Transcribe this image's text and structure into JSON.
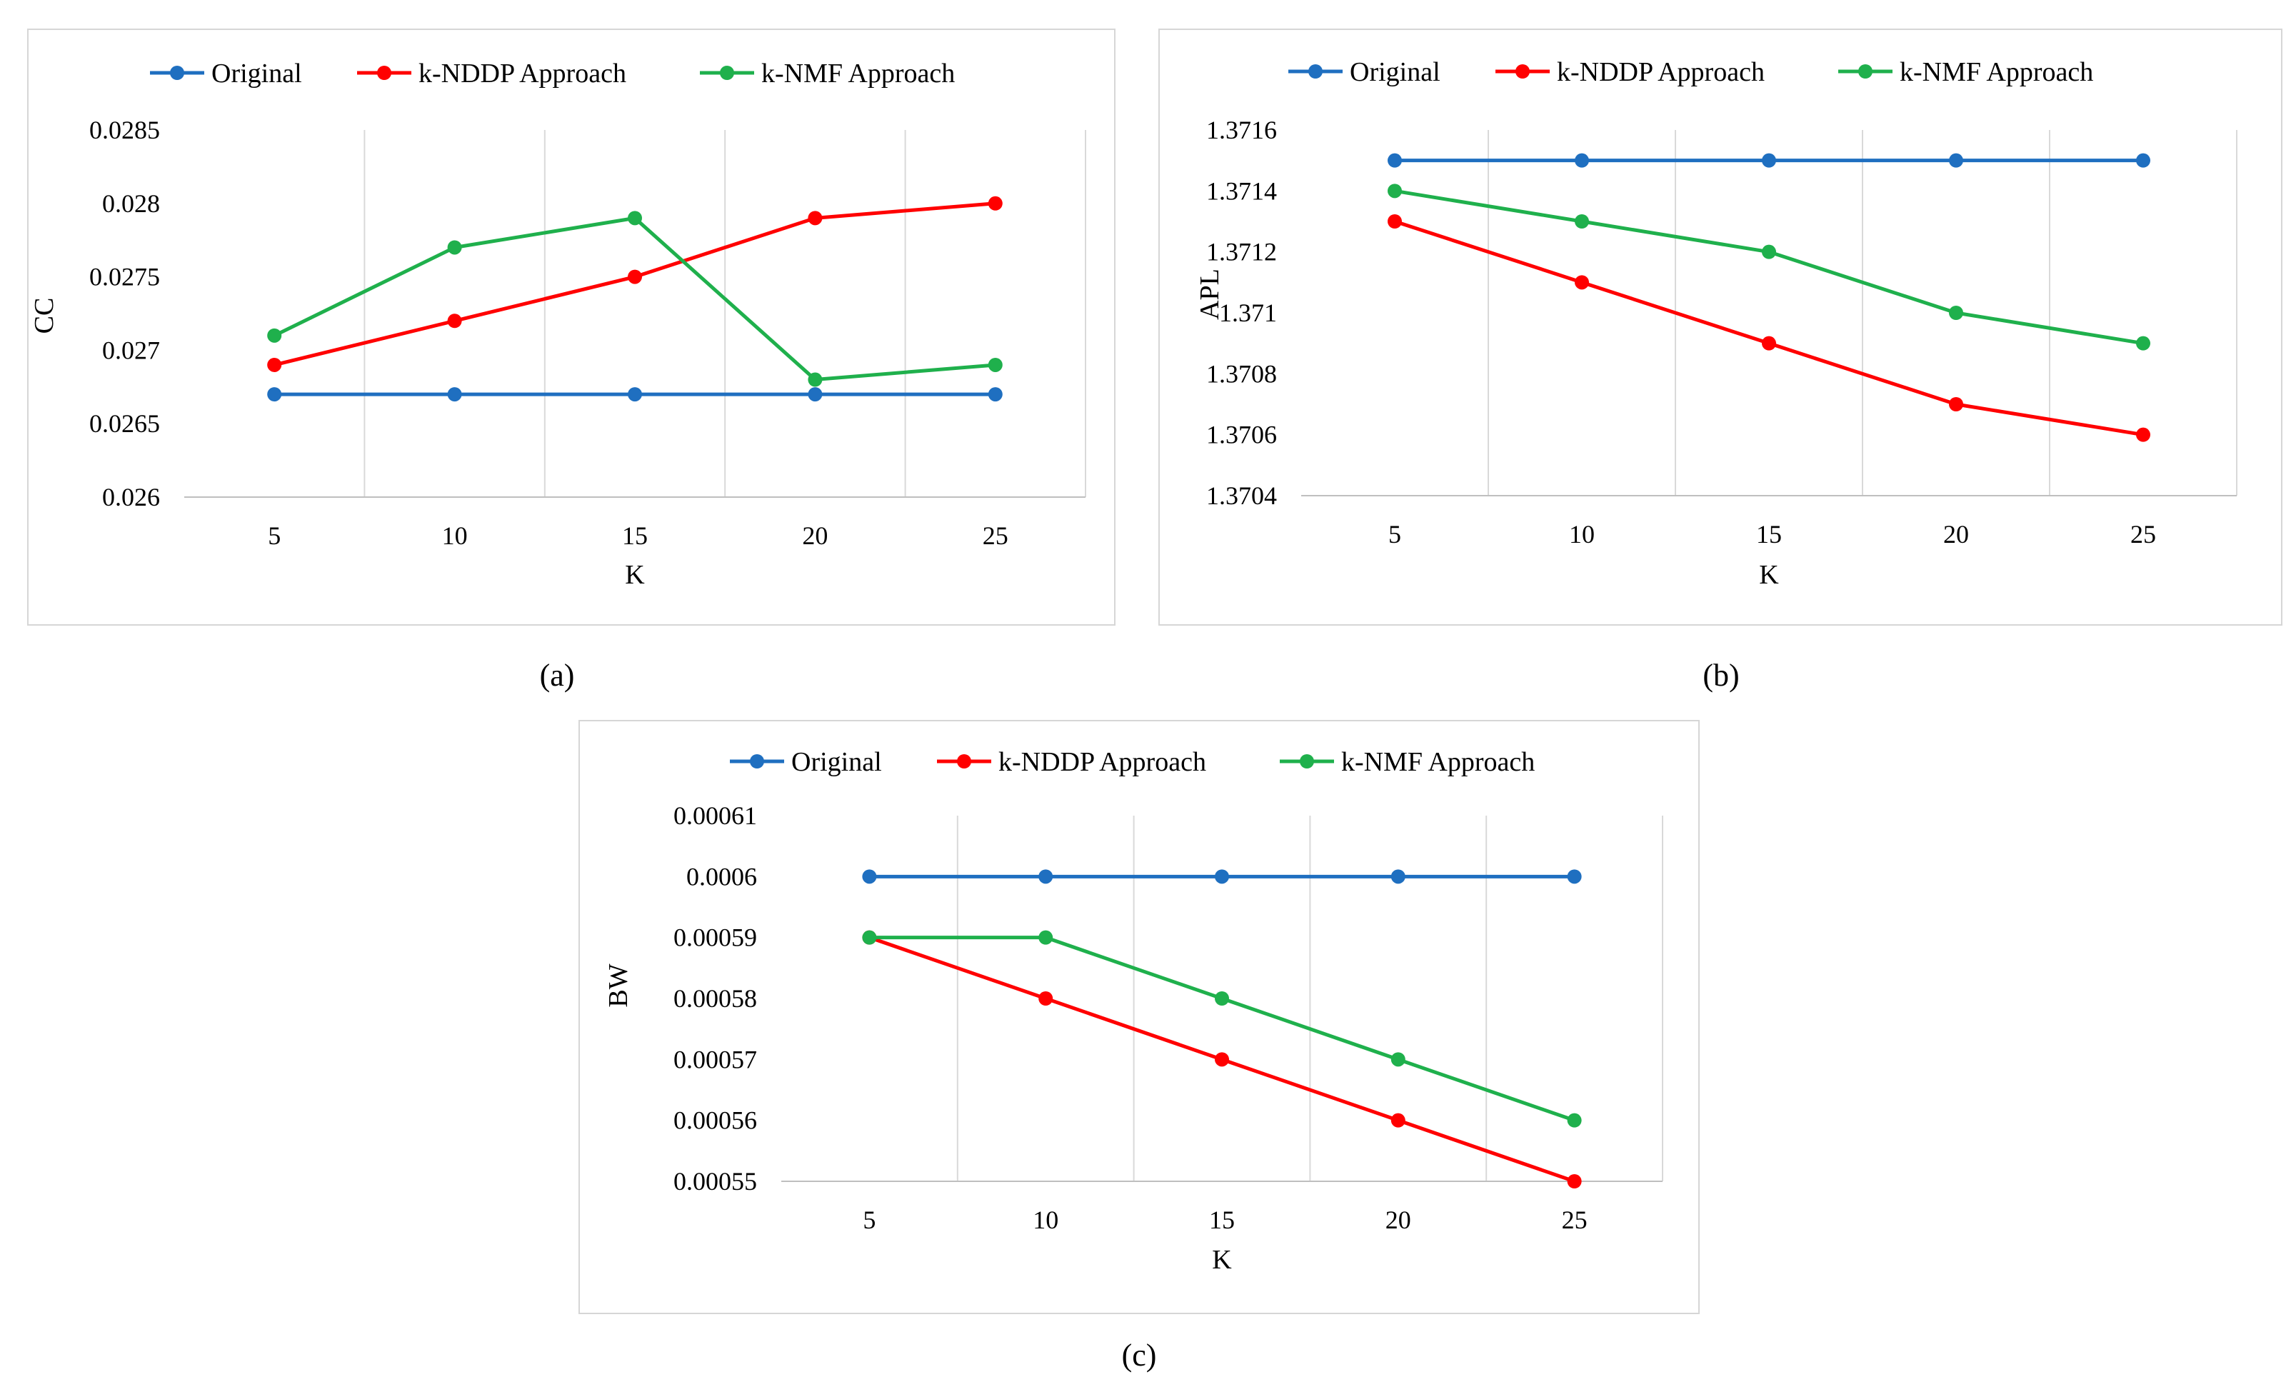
{
  "colors": {
    "original": "#1f6fc0",
    "nddp": "#ff0000",
    "nmf": "#1fb04c",
    "grid": "#d9d9d9",
    "axis": "#bfbfbf",
    "text": "#000000"
  },
  "captions": [
    "(a)",
    "(b)",
    "(c)"
  ],
  "chart_data": [
    {
      "type": "line",
      "panel": "(a)",
      "title": "",
      "xlabel": "K",
      "ylabel": "CC",
      "categories": [
        "5",
        "10",
        "15",
        "20",
        "25"
      ],
      "yticks": [
        "0.026",
        "0.0265",
        "0.027",
        "0.0275",
        "0.028",
        "0.0285"
      ],
      "ylim": [
        0.026,
        0.0285
      ],
      "legend_position": "top",
      "series": [
        {
          "name": "Original",
          "color_key": "original",
          "values": [
            0.0267,
            0.0267,
            0.0267,
            0.0267,
            0.0267
          ]
        },
        {
          "name": "k-NDDP Approach",
          "color_key": "nddp",
          "values": [
            0.0269,
            0.0272,
            0.0275,
            0.0279,
            0.028
          ]
        },
        {
          "name": "k-NMF Approach",
          "color_key": "nmf",
          "values": [
            0.0271,
            0.0277,
            0.0279,
            0.0268,
            0.0269
          ]
        }
      ]
    },
    {
      "type": "line",
      "panel": "(b)",
      "title": "",
      "xlabel": "K",
      "ylabel": "APL",
      "categories": [
        "5",
        "10",
        "15",
        "20",
        "25"
      ],
      "yticks": [
        "1.3704",
        "1.3706",
        "1.3708",
        "1.371",
        "1.3712",
        "1.3714",
        "1.3716"
      ],
      "ylim": [
        1.3704,
        1.3716
      ],
      "legend_position": "top",
      "series": [
        {
          "name": "Original",
          "color_key": "original",
          "values": [
            1.3715,
            1.3715,
            1.3715,
            1.3715,
            1.3715
          ]
        },
        {
          "name": "k-NDDP Approach",
          "color_key": "nddp",
          "values": [
            1.3713,
            1.3711,
            1.3709,
            1.3707,
            1.3706
          ]
        },
        {
          "name": "k-NMF Approach",
          "color_key": "nmf",
          "values": [
            1.3714,
            1.3713,
            1.3712,
            1.371,
            1.3709
          ]
        }
      ]
    },
    {
      "type": "line",
      "panel": "(c)",
      "title": "",
      "xlabel": "K",
      "ylabel": "BW",
      "categories": [
        "5",
        "10",
        "15",
        "20",
        "25"
      ],
      "yticks": [
        "0.00055",
        "0.00056",
        "0.00057",
        "0.00058",
        "0.00059",
        "0.0006",
        "0.00061"
      ],
      "ylim": [
        0.00055,
        0.00061
      ],
      "legend_position": "top",
      "series": [
        {
          "name": "Original",
          "color_key": "original",
          "values": [
            0.0006,
            0.0006,
            0.0006,
            0.0006,
            0.0006
          ]
        },
        {
          "name": "k-NDDP Approach",
          "color_key": "nddp",
          "values": [
            0.00059,
            0.00058,
            0.00057,
            0.00056,
            0.00055
          ]
        },
        {
          "name": "k-NMF Approach",
          "color_key": "nmf",
          "values": [
            0.00059,
            0.00059,
            0.00058,
            0.00057,
            0.00056
          ]
        }
      ]
    }
  ]
}
